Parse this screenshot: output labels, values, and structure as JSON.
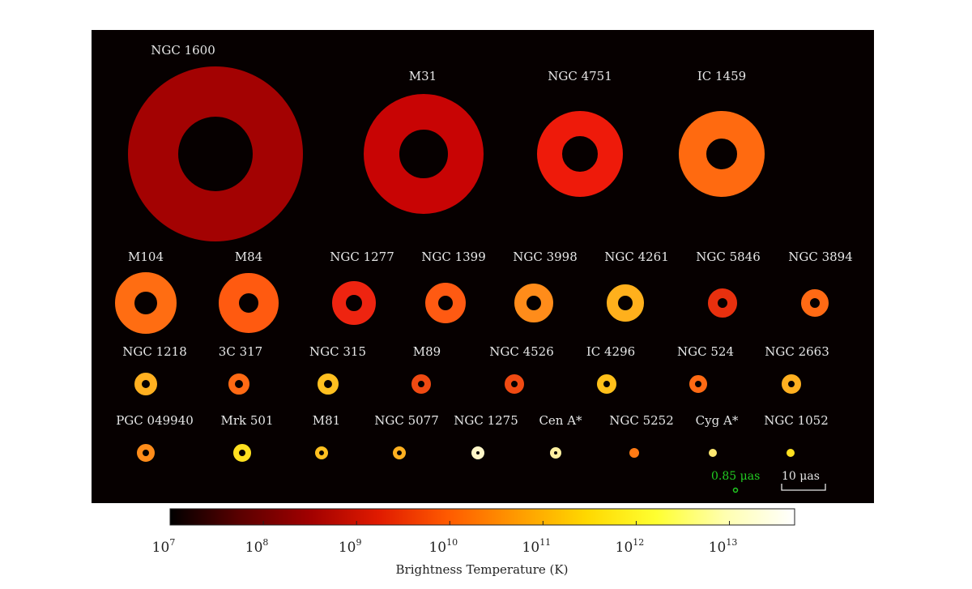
{
  "chart_data": {
    "type": "ring-grid",
    "galaxies": [
      {
        "name": "NGC 1600",
        "outer": 108,
        "inner": 46,
        "color": "#a30202"
      },
      {
        "name": "M31",
        "outer": 74,
        "inner": 30,
        "color": "#c80404"
      },
      {
        "name": "NGC 4751",
        "outer": 53,
        "inner": 22,
        "color": "#ee1a0a"
      },
      {
        "name": "IC 1459",
        "outer": 53,
        "inner": 19,
        "color": "#ff6a10"
      },
      {
        "name": "M104",
        "outer": 38,
        "inner": 14,
        "color": "#ff6d12"
      },
      {
        "name": "M84",
        "outer": 37,
        "inner": 12,
        "color": "#ff5a10"
      },
      {
        "name": "NGC 1277",
        "outer": 27,
        "inner": 10,
        "color": "#ee2410"
      },
      {
        "name": "NGC 1399",
        "outer": 25,
        "inner": 9,
        "color": "#ff5a12"
      },
      {
        "name": "NGC 3998",
        "outer": 24,
        "inner": 9,
        "color": "#ff8c1a"
      },
      {
        "name": "NGC 4261",
        "outer": 23,
        "inner": 9,
        "color": "#ffb01c"
      },
      {
        "name": "NGC 5846",
        "outer": 18,
        "inner": 6,
        "color": "#e8300e"
      },
      {
        "name": "NGC 3894",
        "outer": 17,
        "inner": 6,
        "color": "#ff6a14"
      },
      {
        "name": "NGC 1218",
        "outer": 14,
        "inner": 5,
        "color": "#ffb020"
      },
      {
        "name": "3C 317",
        "outer": 13,
        "inner": 5,
        "color": "#ff6a14"
      },
      {
        "name": "NGC 315",
        "outer": 13,
        "inner": 5,
        "color": "#ffc020"
      },
      {
        "name": "M89",
        "outer": 12,
        "inner": 4,
        "color": "#f04a12"
      },
      {
        "name": "NGC 4526",
        "outer": 12,
        "inner": 4,
        "color": "#f04a12"
      },
      {
        "name": "IC 4296",
        "outer": 12,
        "inner": 4,
        "color": "#ffc01a"
      },
      {
        "name": "NGC 524",
        "outer": 11,
        "inner": 4,
        "color": "#ff6a14"
      },
      {
        "name": "NGC 2663",
        "outer": 12,
        "inner": 4,
        "color": "#ffb020"
      },
      {
        "name": "PGC 049940",
        "outer": 11,
        "inner": 4,
        "color": "#ff8c1a"
      },
      {
        "name": "Mrk 501",
        "outer": 11,
        "inner": 4,
        "color": "#ffe020"
      },
      {
        "name": "M81",
        "outer": 8,
        "inner": 3,
        "color": "#ffc020"
      },
      {
        "name": "NGC 5077",
        "outer": 8,
        "inner": 3,
        "color": "#ffb020"
      },
      {
        "name": "NGC 1275",
        "outer": 8,
        "inner": 2,
        "color": "#fff6c8"
      },
      {
        "name": "Cen A*",
        "outer": 7,
        "inner": 2,
        "color": "#fff0a0"
      },
      {
        "name": "NGC 5252",
        "outer": 6,
        "inner": 0,
        "color": "#ff7a14"
      },
      {
        "name": "Cyg A*",
        "outer": 5,
        "inner": 0,
        "color": "#ffe870"
      },
      {
        "name": "NGC 1052",
        "outer": 5,
        "inner": 0,
        "color": "#ffe020"
      }
    ],
    "scale": {
      "beam_label": "0.85 μas",
      "bar_label": "10 μas"
    },
    "colorbar": {
      "label": "Brightness Temperature (K)",
      "scale": "log",
      "range": [
        10000000.0,
        50000000000000.0
      ],
      "ticks": [
        {
          "base": "10",
          "exp": "7"
        },
        {
          "base": "10",
          "exp": "8"
        },
        {
          "base": "10",
          "exp": "9"
        },
        {
          "base": "10",
          "exp": "10"
        },
        {
          "base": "10",
          "exp": "11"
        },
        {
          "base": "10",
          "exp": "12"
        },
        {
          "base": "10",
          "exp": "13"
        }
      ],
      "colormap": [
        "#000000",
        "#5a0000",
        "#a00000",
        "#e01a00",
        "#ff5a00",
        "#ff9a00",
        "#ffd800",
        "#ffff30",
        "#ffffb0",
        "#ffffff"
      ]
    }
  }
}
